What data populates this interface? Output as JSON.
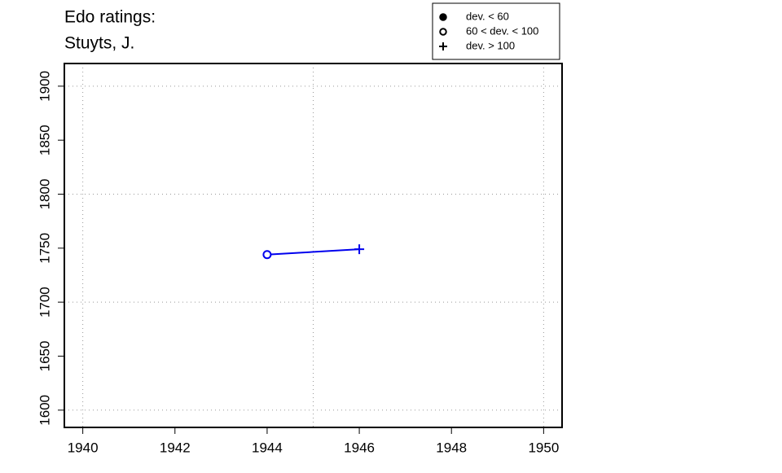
{
  "chart_data": {
    "type": "line",
    "title": "Edo ratings:",
    "subtitle": "Stuyts, J.",
    "series": [
      {
        "color": "#0000ee",
        "x": [
          1944,
          1946
        ],
        "values": [
          1744,
          1749
        ],
        "markers": [
          "open-circle",
          "plus"
        ]
      }
    ],
    "xlim": [
      1939.6,
      1950.4
    ],
    "ylim": [
      1584,
      1921
    ],
    "xticks": [
      1940,
      1942,
      1944,
      1946,
      1948,
      1950
    ],
    "yticks": [
      1600,
      1650,
      1700,
      1750,
      1800,
      1850,
      1900
    ],
    "xgrid": [
      1940,
      1945,
      1950
    ],
    "ygrid": [
      1600,
      1700,
      1800,
      1900
    ],
    "grid": true,
    "legend": {
      "position": "top-right",
      "entries": [
        {
          "label": "dev. < 60",
          "marker": "filled-circle"
        },
        {
          "label": "60 < dev. < 100",
          "marker": "open-circle"
        },
        {
          "label": "dev. > 100",
          "marker": "plus"
        }
      ]
    }
  }
}
